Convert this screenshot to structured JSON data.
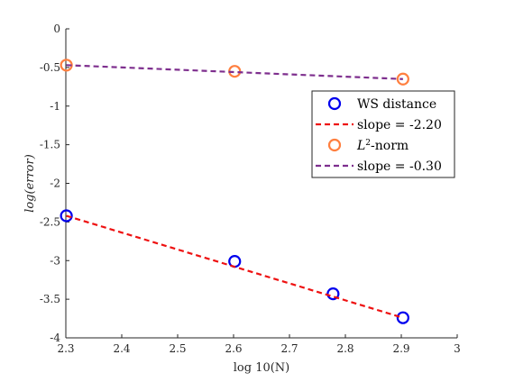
{
  "chart_data": {
    "type": "line",
    "xlabel": "log 10(N)",
    "ylabel": "log(error)",
    "xlim": [
      2.3,
      3.0
    ],
    "ylim": [
      -4.0,
      0.0
    ],
    "xticks": [
      "2.3",
      "2.4",
      "2.5",
      "2.6",
      "2.7",
      "2.8",
      "2.9",
      "3"
    ],
    "yticks": [
      "0",
      "-0.5",
      "-1",
      "-1.5",
      "-2",
      "-2.5",
      "-3",
      "-3.5",
      "-4"
    ],
    "grid": false,
    "legend_position": "right",
    "series": [
      {
        "name": "WS distance",
        "kind": "scatter",
        "marker": "circle",
        "color": "#0000ee",
        "x": [
          2.301,
          2.602,
          2.778,
          2.903
        ],
        "y": [
          -2.42,
          -3.01,
          -3.43,
          -3.74
        ]
      },
      {
        "name": "slope = -2.20",
        "kind": "fit-line",
        "style": "dashed",
        "color": "#ee1111",
        "x": [
          2.301,
          2.903
        ],
        "y": [
          -2.42,
          -3.74
        ]
      },
      {
        "name": "L2-norm",
        "kind": "scatter",
        "marker": "circle",
        "color": "#ff7f3f",
        "x": [
          2.301,
          2.602,
          2.903
        ],
        "y": [
          -0.47,
          -0.55,
          -0.65
        ]
      },
      {
        "name": "slope = -0.30",
        "kind": "fit-line",
        "style": "dashed",
        "color": "#7e2f8e",
        "x": [
          2.301,
          2.903
        ],
        "y": [
          -0.47,
          -0.65
        ]
      }
    ]
  }
}
